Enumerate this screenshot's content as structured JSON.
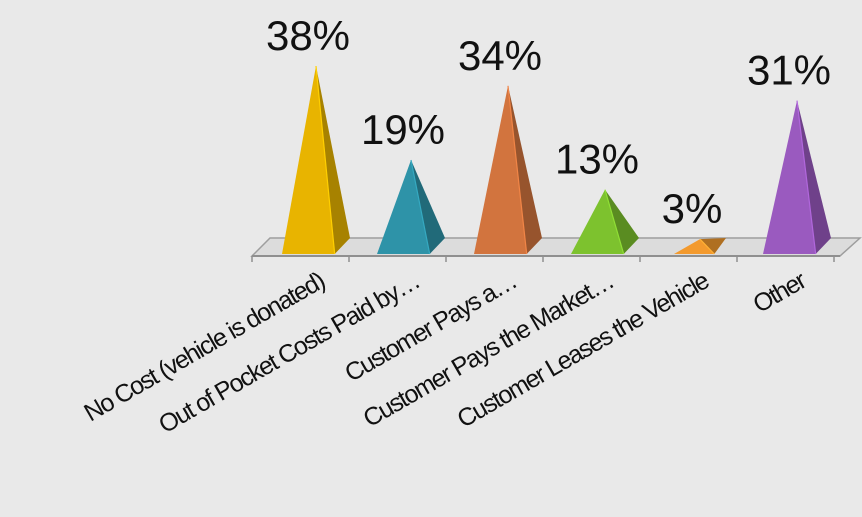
{
  "chart_data": {
    "type": "bar",
    "bar_shape": "pyramid",
    "categories": [
      "No Cost (vehicle is donated)",
      "Out of Pocket Costs Paid by…",
      "Customer Pays a…",
      "Customer Pays the Market…",
      "Customer Leases the Vehicle",
      "Other"
    ],
    "values": [
      38,
      19,
      34,
      13,
      3,
      31
    ],
    "value_labels": [
      "38%",
      "19%",
      "34%",
      "13%",
      "3%",
      "31%"
    ],
    "colors": [
      "#E8B400",
      "#2E93A8",
      "#D2743E",
      "#7DC22E",
      "#F39A2E",
      "#9A5ABF"
    ],
    "title": "",
    "xlabel": "",
    "ylabel": "",
    "ylim": [
      0,
      38
    ],
    "grid": false,
    "legend": "none",
    "background": "#e9e9e9"
  }
}
